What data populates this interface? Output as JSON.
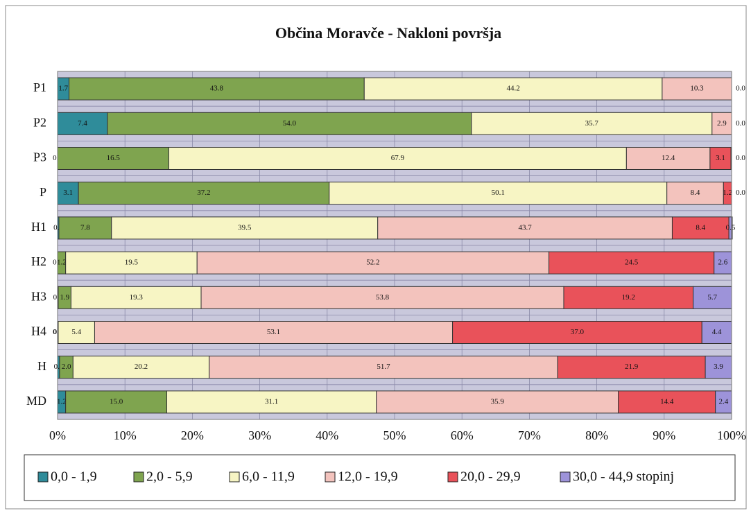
{
  "chart_data": {
    "type": "stacked_bar_horizontal",
    "title": "Občina Moravče - Nakloni površja",
    "categories": [
      "P1",
      "P2",
      "P3",
      "P",
      "H1",
      "H2",
      "H3",
      "H4",
      "H",
      "MD"
    ],
    "series": [
      {
        "name": "0,0 - 1,9",
        "color": "#2f8c9a",
        "values": [
          1.7,
          7.4,
          0.0,
          3.1,
          0.2,
          0.0,
          0.1,
          0.0,
          0.3,
          1.2
        ],
        "value_labels": [
          "1.7",
          "7.4",
          "0.0",
          "3.1",
          "0.2",
          "0.0",
          "0.1",
          "0.0",
          "0.3",
          "1.2"
        ]
      },
      {
        "name": "2,0 - 5,9",
        "color": "#7fa44f",
        "values": [
          43.8,
          54.0,
          16.5,
          37.2,
          7.8,
          1.2,
          1.9,
          0.1,
          2.0,
          15.0
        ],
        "value_labels": [
          "43.8",
          "54.0",
          "16.5",
          "37.2",
          "7.8",
          "1.2",
          "1.9",
          "0.1",
          "2.0",
          "15.0"
        ]
      },
      {
        "name": "6,0 - 11,9",
        "color": "#f7f5c4",
        "values": [
          44.2,
          35.7,
          67.9,
          50.1,
          39.5,
          19.5,
          19.3,
          5.4,
          20.2,
          31.1
        ],
        "value_labels": [
          "44.2",
          "35.7",
          "67.9",
          "50.1",
          "39.5",
          "19.5",
          "19.3",
          "5.4",
          "20.2",
          "31.1"
        ]
      },
      {
        "name": "12,0 - 19,9",
        "color": "#f3c3bd",
        "values": [
          10.3,
          2.9,
          12.4,
          8.4,
          43.7,
          52.2,
          53.8,
          53.1,
          51.7,
          35.9
        ],
        "value_labels": [
          "10.3",
          "2.9",
          "12.4",
          "8.4",
          "43.7",
          "52.2",
          "53.8",
          "53.1",
          "51.7",
          "35.9"
        ]
      },
      {
        "name": "20,0 - 29,9",
        "color": "#e9525a",
        "values": [
          0.0,
          0.0,
          3.1,
          1.2,
          8.4,
          24.5,
          19.2,
          37.0,
          21.9,
          14.4
        ],
        "value_labels": [
          "0.0",
          "0.0",
          "3.1",
          "1.2",
          "8.4",
          "24.5",
          "19.2",
          "37.0",
          "21.9",
          "14.4"
        ]
      },
      {
        "name": "30,0 - 44,9 stopinj",
        "color": "#9d93d9",
        "values": [
          null,
          null,
          0.0,
          0.0,
          0.5,
          2.6,
          5.7,
          4.4,
          3.9,
          2.4
        ],
        "value_labels": [
          null,
          null,
          "0.0",
          "0.0",
          "0.5",
          "2.6",
          "5.7",
          "4.4",
          "3.9",
          "2.4"
        ]
      }
    ],
    "xlim": [
      0,
      100
    ],
    "xticks": [
      {
        "value": 0,
        "label": "0%"
      },
      {
        "value": 10,
        "label": "10%"
      },
      {
        "value": 20,
        "label": "20%"
      },
      {
        "value": 30,
        "label": "30%"
      },
      {
        "value": 40,
        "label": "40%"
      },
      {
        "value": 50,
        "label": "50%"
      },
      {
        "value": 60,
        "label": "60%"
      },
      {
        "value": 70,
        "label": "70%"
      },
      {
        "value": 80,
        "label": "80%"
      },
      {
        "value": 90,
        "label": "90%"
      },
      {
        "value": 100,
        "label": "100%"
      }
    ],
    "grid": true,
    "legend": "bottom"
  }
}
